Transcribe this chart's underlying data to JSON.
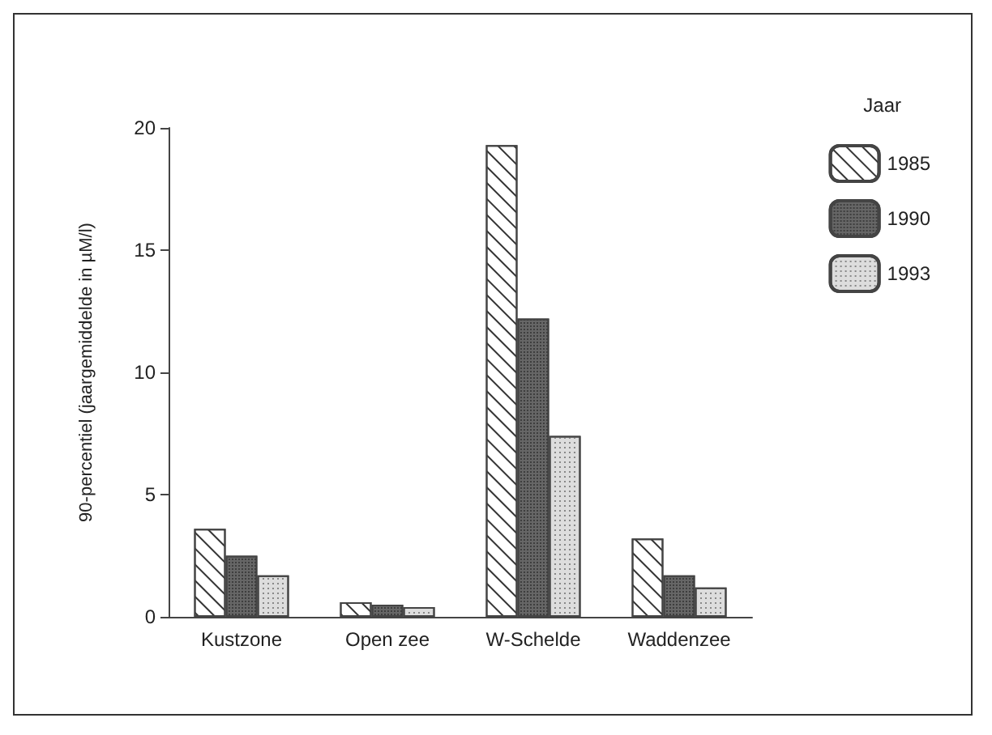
{
  "chart_data": {
    "type": "bar",
    "ylabel": "90-percentiel (jaargemiddelde in µM/l)",
    "legend_title": "Jaar",
    "categories": [
      "Kustzone",
      "Open zee",
      "W-Schelde",
      "Waddenzee"
    ],
    "series": [
      {
        "name": "1985",
        "color": "#ffffff",
        "values": [
          3.6,
          0.6,
          19.3,
          3.2
        ]
      },
      {
        "name": "1990",
        "color": "#666666",
        "values": [
          2.5,
          0.5,
          12.2,
          1.7
        ]
      },
      {
        "name": "1993",
        "color": "#dddddd",
        "values": [
          1.7,
          0.4,
          7.4,
          1.2
        ]
      }
    ],
    "ylim": [
      0,
      20
    ],
    "yticks": [
      0,
      5,
      10,
      15,
      20
    ],
    "grid": false,
    "legend": "top right"
  }
}
